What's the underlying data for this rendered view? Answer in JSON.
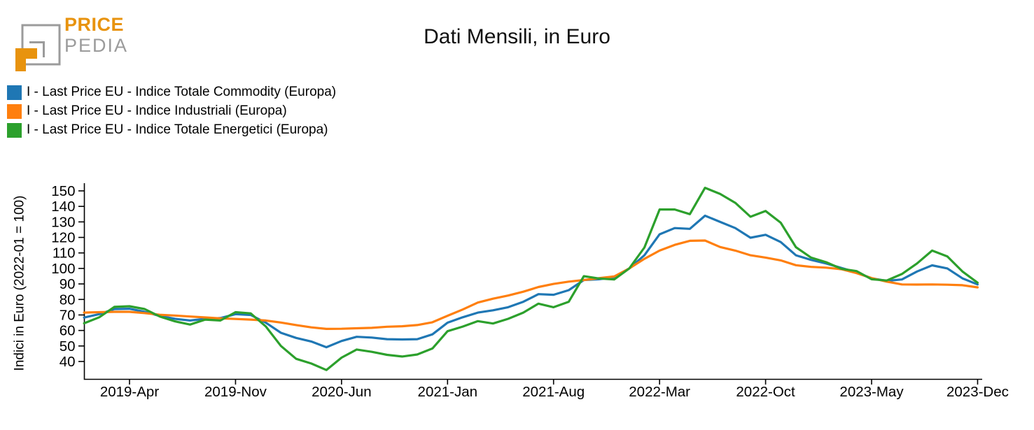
{
  "logo": {
    "brand_top": "PRICE",
    "brand_bottom": "PEDIA",
    "orange": "#E8930E",
    "gray": "#9B9B9B"
  },
  "chart_data": {
    "type": "line",
    "title": "Dati Mensili, in Euro",
    "ylabel": "Indici in Euro (2022-01 = 100)",
    "grid": false,
    "legend_position": "top-left",
    "ylim": [
      33,
      155
    ],
    "y_ticks": [
      40,
      50,
      60,
      70,
      80,
      90,
      100,
      110,
      120,
      130,
      140,
      150
    ],
    "x_tick_labels": [
      "2019-Apr",
      "2019-Nov",
      "2020-Jun",
      "2021-Jan",
      "2021-Aug",
      "2022-Mar",
      "2022-Oct",
      "2023-May",
      "2023-Dec"
    ],
    "x_tick_month_indices": [
      3,
      10,
      17,
      24,
      31,
      38,
      45,
      52,
      59
    ],
    "months": [
      "2019-Jan",
      "2019-Feb",
      "2019-Mar",
      "2019-Apr",
      "2019-May",
      "2019-Jun",
      "2019-Jul",
      "2019-Aug",
      "2019-Sep",
      "2019-Oct",
      "2019-Nov",
      "2019-Dec",
      "2020-Jan",
      "2020-Feb",
      "2020-Mar",
      "2020-Apr",
      "2020-May",
      "2020-Jun",
      "2020-Jul",
      "2020-Aug",
      "2020-Sep",
      "2020-Oct",
      "2020-Nov",
      "2020-Dec",
      "2021-Jan",
      "2021-Feb",
      "2021-Mar",
      "2021-Apr",
      "2021-May",
      "2021-Jun",
      "2021-Jul",
      "2021-Aug",
      "2021-Sep",
      "2021-Oct",
      "2021-Nov",
      "2021-Dec",
      "2022-Jan",
      "2022-Feb",
      "2022-Mar",
      "2022-Apr",
      "2022-May",
      "2022-Jun",
      "2022-Jul",
      "2022-Aug",
      "2022-Sep",
      "2022-Oct",
      "2022-Nov",
      "2022-Dec",
      "2023-Jan",
      "2023-Feb",
      "2023-Mar",
      "2023-Apr",
      "2023-May",
      "2023-Jun",
      "2023-Jul",
      "2023-Aug",
      "2023-Sep",
      "2023-Oct",
      "2023-Nov",
      "2023-Dec"
    ],
    "series": [
      {
        "id": "commodity",
        "name": "I - Last Price EU - Indice Totale Commodity (Europa)",
        "color": "#1F77B4",
        "values": [
          68.3,
          70.5,
          73.8,
          74.0,
          72.0,
          69.3,
          67.5,
          66.4,
          67.5,
          68.0,
          70.5,
          70.0,
          65.0,
          58.5,
          55.2,
          52.9,
          49.2,
          53.2,
          55.9,
          55.4,
          54.4,
          54.2,
          54.4,
          57.5,
          65.0,
          68.5,
          71.5,
          73.0,
          75.0,
          78.5,
          83.4,
          83.0,
          86.0,
          92.5,
          93.0,
          94.3,
          100,
          108.5,
          122.0,
          126.0,
          125.5,
          134.0,
          130.0,
          126.0,
          119.8,
          121.7,
          117.0,
          108.5,
          105.5,
          103.2,
          100.3,
          97.5,
          93.6,
          92.0,
          92.9,
          98.0,
          102.0,
          100.0,
          93.6,
          89.7
        ]
      },
      {
        "id": "industriali",
        "name": "I - Last Price EU - Indice Industriali (Europa)",
        "color": "#FF7F0E",
        "values": [
          71.5,
          71.8,
          72.0,
          72.0,
          71.2,
          70.1,
          69.6,
          69.0,
          68.4,
          67.8,
          67.4,
          67.0,
          66.4,
          65.1,
          63.5,
          62.0,
          61.0,
          61.1,
          61.4,
          61.7,
          62.4,
          62.7,
          63.5,
          65.3,
          69.5,
          73.5,
          78.0,
          80.5,
          82.5,
          85.0,
          88.0,
          90.0,
          91.5,
          92.5,
          93.7,
          94.8,
          100,
          106.2,
          111.5,
          115.2,
          117.8,
          118.0,
          113.8,
          111.5,
          108.5,
          107.0,
          105.2,
          102.1,
          101.0,
          100.5,
          99.5,
          97.0,
          93.8,
          91.5,
          89.7,
          89.6,
          89.7,
          89.5,
          89.2,
          87.8
        ]
      },
      {
        "id": "energetici",
        "name": "I - Last Price EU - Indice Totale Energetici (Europa)",
        "color": "#2CA02C",
        "values": [
          64.6,
          68.5,
          75.2,
          75.6,
          73.8,
          69.0,
          65.9,
          63.8,
          67.0,
          66.4,
          71.8,
          71.0,
          62.6,
          50.0,
          41.7,
          38.7,
          34.5,
          42.5,
          47.7,
          46.2,
          44.3,
          43.2,
          44.5,
          48.4,
          59.5,
          62.5,
          66.0,
          64.5,
          67.5,
          71.5,
          77.3,
          75.0,
          78.5,
          95.0,
          93.5,
          92.9,
          100,
          113.5,
          138.0,
          138.0,
          135.0,
          152.0,
          148.0,
          142.3,
          133.3,
          137.0,
          129.5,
          113.7,
          107.0,
          104.0,
          99.8,
          98.3,
          93.0,
          92.2,
          96.4,
          103.2,
          111.5,
          107.7,
          98.0,
          90.8
        ]
      }
    ]
  }
}
